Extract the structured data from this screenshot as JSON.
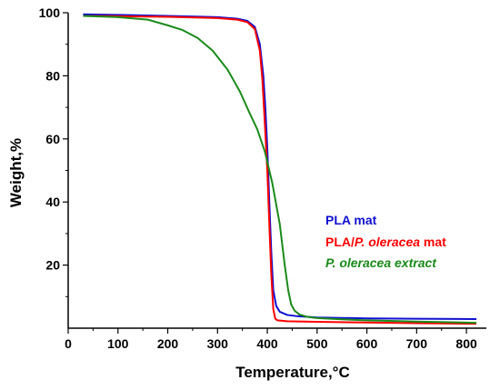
{
  "chart_data": {
    "type": "line",
    "xlabel": "Temperature,°C",
    "ylabel": "Weight,%",
    "xlim": [
      0,
      840
    ],
    "ylim": [
      0,
      100
    ],
    "xticks": [
      0,
      100,
      200,
      300,
      400,
      500,
      600,
      700,
      800
    ],
    "yticks": [
      20,
      40,
      60,
      80,
      100
    ],
    "grid": false,
    "legend_position": "center-right",
    "series": [
      {
        "name": "PLA mat",
        "color": "#1010d0",
        "italic": false,
        "x": [
          30,
          100,
          200,
          300,
          340,
          360,
          375,
          385,
          392,
          396,
          400,
          404,
          408,
          412,
          418,
          425,
          440,
          460,
          500,
          600,
          700,
          820
        ],
        "y": [
          99.5,
          99.3,
          99.0,
          98.6,
          98.1,
          97.4,
          95.5,
          90,
          80,
          70,
          57,
          40,
          24,
          12,
          7,
          5.2,
          4.2,
          3.8,
          3.4,
          3.1,
          3.0,
          2.9
        ]
      },
      {
        "name": "PLA/|P. oleracea| mat",
        "color": "#ff0000",
        "italic": false,
        "x": [
          30,
          100,
          200,
          300,
          340,
          360,
          375,
          385,
          390,
          395,
          400,
          404,
          408,
          412,
          416,
          420,
          440,
          500,
          600,
          700,
          820
        ],
        "y": [
          99.0,
          98.9,
          98.7,
          98.3,
          97.8,
          97.0,
          94.8,
          88,
          79,
          65,
          50,
          33,
          17,
          6,
          3,
          2.5,
          2.2,
          2.0,
          1.8,
          1.6,
          1.4
        ]
      },
      {
        "name": "P. oleracea extract",
        "color": "#1a8a1a",
        "italic": true,
        "x": [
          30,
          100,
          160,
          200,
          230,
          260,
          290,
          320,
          345,
          365,
          380,
          395,
          410,
          425,
          435,
          442,
          448,
          455,
          465,
          480,
          500,
          550,
          600,
          700,
          820
        ],
        "y": [
          99.0,
          98.6,
          97.8,
          96.0,
          94.5,
          92.0,
          88.0,
          82.0,
          75.0,
          68.0,
          63.0,
          56.0,
          46.0,
          33.0,
          20.0,
          12.0,
          7.5,
          5.5,
          4.3,
          3.6,
          3.2,
          2.8,
          2.5,
          2.1,
          1.7
        ]
      }
    ]
  }
}
